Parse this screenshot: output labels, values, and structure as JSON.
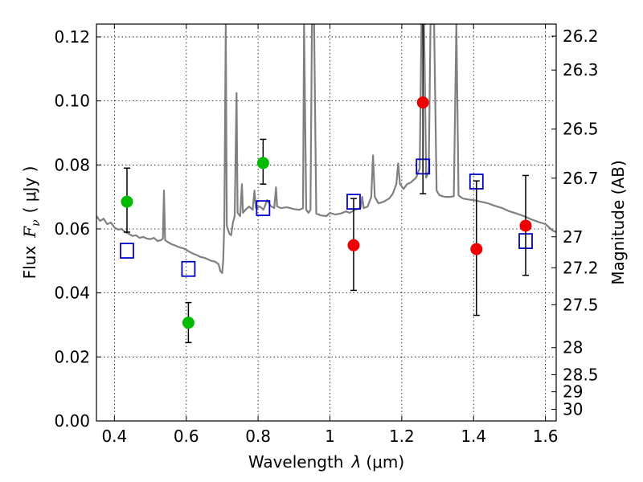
{
  "chart_data": {
    "type": "scatter",
    "xlabel_text": "Wavelength",
    "xlabel_symbol": "λ",
    "xlabel_unit": "(μm)",
    "ylabel_left": "Flux",
    "ylabel_symbol": "F",
    "ylabel_sub": "ν",
    "ylabel_unit": "( μJy )",
    "ylabel_right": "Magnitude (AB)",
    "xlim": [
      0.35,
      1.63
    ],
    "ylim": [
      0.0,
      0.124
    ],
    "x_ticks": [
      {
        "v": 0.4,
        "label": "0.4"
      },
      {
        "v": 0.6,
        "label": "0.6"
      },
      {
        "v": 0.8,
        "label": "0.8"
      },
      {
        "v": 1.0,
        "label": "1"
      },
      {
        "v": 1.2,
        "label": "1.2"
      },
      {
        "v": 1.4,
        "label": "1.4"
      },
      {
        "v": 1.6,
        "label": "1.6"
      }
    ],
    "y_ticks": [
      {
        "v": 0.0,
        "label": "0.00"
      },
      {
        "v": 0.02,
        "label": "0.02"
      },
      {
        "v": 0.04,
        "label": "0.04"
      },
      {
        "v": 0.06,
        "label": "0.06"
      },
      {
        "v": 0.08,
        "label": "0.08"
      },
      {
        "v": 0.1,
        "label": "0.10"
      },
      {
        "v": 0.12,
        "label": "0.12"
      }
    ],
    "right_ticks": [
      {
        "mag": 26.2,
        "label": "26.2"
      },
      {
        "mag": 26.3,
        "label": "26.3"
      },
      {
        "mag": 26.5,
        "label": "26.5"
      },
      {
        "mag": 26.7,
        "label": "26.7"
      },
      {
        "mag": 27.0,
        "label": "27"
      },
      {
        "mag": 27.2,
        "label": "27.2"
      },
      {
        "mag": 27.5,
        "label": "27.5"
      },
      {
        "mag": 28.0,
        "label": "28"
      },
      {
        "mag": 28.5,
        "label": "28.5"
      },
      {
        "mag": 29.0,
        "label": "29"
      },
      {
        "mag": 30.0,
        "label": "30"
      }
    ],
    "grid": true,
    "colors": {
      "green": "#00bb00",
      "red": "#ee0000",
      "blue": "#0000cc",
      "spectrum": "#808080"
    },
    "green_points": [
      {
        "x": 0.435,
        "y": 0.0685,
        "lo": 0.059,
        "hi": 0.079
      },
      {
        "x": 0.606,
        "y": 0.0307,
        "lo": 0.0245,
        "hi": 0.037
      },
      {
        "x": 0.814,
        "y": 0.0806,
        "lo": 0.074,
        "hi": 0.088
      }
    ],
    "red_points": [
      {
        "x": 1.066,
        "y": 0.0549,
        "lo": 0.0408,
        "hi": 0.0695
      },
      {
        "x": 1.259,
        "y": 0.0995,
        "lo": 0.071,
        "hi": 0.124
      },
      {
        "x": 1.408,
        "y": 0.0537,
        "lo": 0.033,
        "hi": 0.075
      },
      {
        "x": 1.545,
        "y": 0.061,
        "lo": 0.0455,
        "hi": 0.0767
      }
    ],
    "model_points": [
      {
        "x": 0.435,
        "y": 0.0532
      },
      {
        "x": 0.606,
        "y": 0.0475
      },
      {
        "x": 0.814,
        "y": 0.0665
      },
      {
        "x": 1.066,
        "y": 0.0685
      },
      {
        "x": 1.259,
        "y": 0.0795
      },
      {
        "x": 1.408,
        "y": 0.0748
      },
      {
        "x": 1.545,
        "y": 0.0562
      }
    ],
    "spectrum": [
      [
        0.35,
        0.064
      ],
      [
        0.36,
        0.0625
      ],
      [
        0.37,
        0.0632
      ],
      [
        0.38,
        0.0615
      ],
      [
        0.39,
        0.062
      ],
      [
        0.4,
        0.0605
      ],
      [
        0.41,
        0.0598
      ],
      [
        0.42,
        0.06
      ],
      [
        0.43,
        0.059
      ],
      [
        0.44,
        0.0585
      ],
      [
        0.45,
        0.0578
      ],
      [
        0.46,
        0.058
      ],
      [
        0.47,
        0.0572
      ],
      [
        0.48,
        0.0575
      ],
      [
        0.49,
        0.057
      ],
      [
        0.5,
        0.0568
      ],
      [
        0.51,
        0.0572
      ],
      [
        0.52,
        0.0562
      ],
      [
        0.53,
        0.0565
      ],
      [
        0.535,
        0.057
      ],
      [
        0.538,
        0.072
      ],
      [
        0.541,
        0.0565
      ],
      [
        0.55,
        0.0558
      ],
      [
        0.56,
        0.0552
      ],
      [
        0.57,
        0.0548
      ],
      [
        0.58,
        0.0543
      ],
      [
        0.59,
        0.054
      ],
      [
        0.6,
        0.0535
      ],
      [
        0.61,
        0.0528
      ],
      [
        0.62,
        0.0522
      ],
      [
        0.63,
        0.0518
      ],
      [
        0.64,
        0.0512
      ],
      [
        0.65,
        0.051
      ],
      [
        0.66,
        0.0505
      ],
      [
        0.67,
        0.05
      ],
      [
        0.68,
        0.0498
      ],
      [
        0.69,
        0.049
      ],
      [
        0.695,
        0.0468
      ],
      [
        0.7,
        0.0462
      ],
      [
        0.703,
        0.05
      ],
      [
        0.706,
        0.062
      ],
      [
        0.71,
        0.124
      ],
      [
        0.713,
        0.061
      ],
      [
        0.72,
        0.0585
      ],
      [
        0.725,
        0.058
      ],
      [
        0.73,
        0.062
      ],
      [
        0.735,
        0.064
      ],
      [
        0.74,
        0.1025
      ],
      [
        0.743,
        0.065
      ],
      [
        0.75,
        0.064
      ],
      [
        0.755,
        0.074
      ],
      [
        0.758,
        0.065
      ],
      [
        0.765,
        0.066
      ],
      [
        0.775,
        0.067
      ],
      [
        0.785,
        0.066
      ],
      [
        0.79,
        0.072
      ],
      [
        0.794,
        0.0665
      ],
      [
        0.805,
        0.067
      ],
      [
        0.815,
        0.066
      ],
      [
        0.825,
        0.069
      ],
      [
        0.835,
        0.0672
      ],
      [
        0.845,
        0.0665
      ],
      [
        0.85,
        0.073
      ],
      [
        0.853,
        0.067
      ],
      [
        0.865,
        0.0665
      ],
      [
        0.88,
        0.0668
      ],
      [
        0.9,
        0.0662
      ],
      [
        0.915,
        0.066
      ],
      [
        0.925,
        0.0665
      ],
      [
        0.928,
        0.124
      ],
      [
        0.934,
        0.066
      ],
      [
        0.94,
        0.065
      ],
      [
        0.946,
        0.066
      ],
      [
        0.95,
        0.124
      ],
      [
        0.956,
        0.124
      ],
      [
        0.962,
        0.0648
      ],
      [
        0.975,
        0.0642
      ],
      [
        0.99,
        0.064
      ],
      [
        1.0,
        0.065
      ],
      [
        1.015,
        0.0645
      ],
      [
        1.03,
        0.0648
      ],
      [
        1.045,
        0.0655
      ],
      [
        1.055,
        0.065
      ],
      [
        1.07,
        0.066
      ],
      [
        1.085,
        0.0665
      ],
      [
        1.09,
        0.07
      ],
      [
        1.094,
        0.0665
      ],
      [
        1.105,
        0.067
      ],
      [
        1.115,
        0.07
      ],
      [
        1.12,
        0.083
      ],
      [
        1.125,
        0.07
      ],
      [
        1.135,
        0.068
      ],
      [
        1.15,
        0.0685
      ],
      [
        1.165,
        0.0695
      ],
      [
        1.175,
        0.071
      ],
      [
        1.185,
        0.074
      ],
      [
        1.19,
        0.0805
      ],
      [
        1.195,
        0.074
      ],
      [
        1.205,
        0.0725
      ],
      [
        1.215,
        0.074
      ],
      [
        1.225,
        0.0745
      ],
      [
        1.24,
        0.076
      ],
      [
        1.25,
        0.079
      ],
      [
        1.255,
        0.124
      ],
      [
        1.262,
        0.124
      ],
      [
        1.268,
        0.076
      ],
      [
        1.275,
        0.078
      ],
      [
        1.28,
        0.124
      ],
      [
        1.29,
        0.124
      ],
      [
        1.297,
        0.072
      ],
      [
        1.305,
        0.0705
      ],
      [
        1.32,
        0.07
      ],
      [
        1.335,
        0.07
      ],
      [
        1.345,
        0.0702
      ],
      [
        1.352,
        0.124
      ],
      [
        1.358,
        0.0705
      ],
      [
        1.37,
        0.0695
      ],
      [
        1.385,
        0.0692
      ],
      [
        1.4,
        0.069
      ],
      [
        1.42,
        0.0685
      ],
      [
        1.44,
        0.068
      ],
      [
        1.46,
        0.0672
      ],
      [
        1.48,
        0.0665
      ],
      [
        1.5,
        0.0655
      ],
      [
        1.52,
        0.0648
      ],
      [
        1.54,
        0.064
      ],
      [
        1.56,
        0.063
      ],
      [
        1.58,
        0.0622
      ],
      [
        1.6,
        0.0615
      ],
      [
        1.61,
        0.0605
      ],
      [
        1.62,
        0.0595
      ],
      [
        1.63,
        0.059
      ]
    ]
  }
}
